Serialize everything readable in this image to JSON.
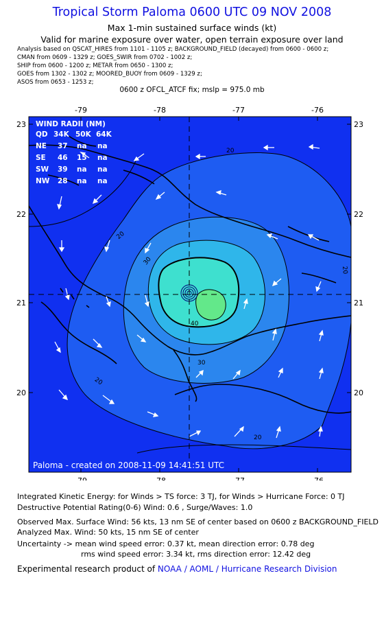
{
  "header": {
    "title": "Tropical Storm Paloma 0600 UTC 09 NOV 2008",
    "subtitle1": "Max 1-min sustained surface winds (kt)",
    "subtitle2": "Valid for marine exposure over water, open terrain exposure over land"
  },
  "analysis_lines": [
    "Analysis based on  QSCAT_HIRES from 1101 - 1105 z;  BACKGROUND_FIELD (decayed) from 0600 - 0600 z;",
    "CMAN from 0609 - 1329 z;  GOES_SWIR from 0702 - 1002 z;",
    "SHIP from 0600 - 1200 z;  METAR from 0650 - 1300 z;",
    "GOES from 1302 - 1302 z;  MOORED_BUOY from 0609 - 1329 z;",
    "ASOS from 0653 - 1253 z;"
  ],
  "fix_line": "0600 z OFCL_ATCF fix; mslp = 975.0 mb",
  "map": {
    "lon_labels": [
      "-79",
      "-78",
      "-77",
      "-76"
    ],
    "lat_labels": [
      "23",
      "22",
      "21",
      "20"
    ],
    "contour_labels": [
      "20",
      "20",
      "20",
      "20",
      "20",
      "30",
      "30",
      "40"
    ],
    "credit": "Paloma - created on 2008-11-09 14:41:51 UTC",
    "colors": {
      "background": "#1030f0",
      "level20": "#1e5cf2",
      "level30": "#2b86ee",
      "level40": "#2fb6ea",
      "level50": "#3ee0cf",
      "max": "#63e88a",
      "land": "#000000"
    },
    "wind_radii": {
      "title": "WIND RADII (NM)",
      "header": [
        "QD",
        "34K",
        "50K",
        "64K"
      ],
      "rows": [
        [
          "NE",
          "37",
          "na",
          "na"
        ],
        [
          "SE",
          "46",
          "15",
          "na"
        ],
        [
          "SW",
          "39",
          "na",
          "na"
        ],
        [
          "NW",
          "28",
          "na",
          "na"
        ]
      ]
    }
  },
  "stats": {
    "ike": "Integrated Kinetic Energy:  for Winds > TS force: 3 TJ,  for Winds > Hurricane Force: 0 TJ",
    "dpr": "Destructive Potential Rating(0-6)   Wind: 0.6 , Surge/Waves: 1.0",
    "observed": "Observed Max. Surface Wind: 56 kts, 13 nm SE of center based on 0600 z BACKGROUND_FIELD",
    "analyzed": "Analyzed Max. Wind: 50 kts, 15 nm SE of center",
    "uncertainty1": "Uncertainty -> mean wind speed error: 0.37 kt,   mean direction error: 0.78 deg",
    "uncertainty2": "rms wind speed error: 3.34 kt,   rms direction error: 12.42 deg",
    "footer_prefix": "Experimental research product of ",
    "footer_link": "NOAA / AOML / Hurricane Research Division"
  }
}
